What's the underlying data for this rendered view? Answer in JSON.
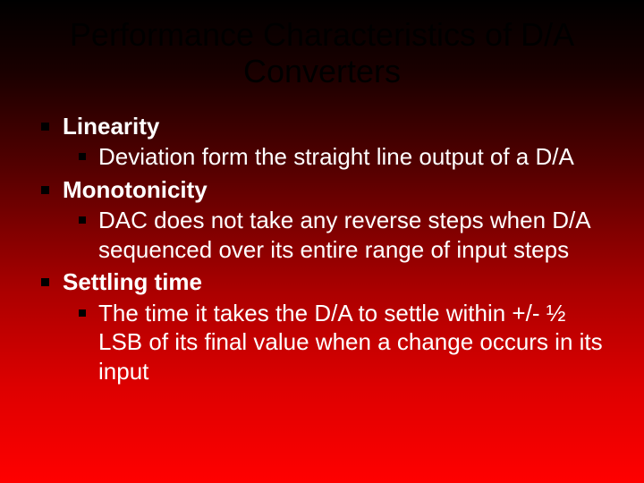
{
  "slide": {
    "title": "Performance Characteristics of D/A Converters",
    "background_gradient": [
      "#000000",
      "#1a0000",
      "#550000",
      "#aa0000",
      "#dd0000",
      "#ff0000"
    ],
    "title_color": "#000000",
    "title_fontsize": 36,
    "body_color": "#ffffff",
    "body_fontsize": 26,
    "bullet_color": "#000000",
    "bullet_shape": "square",
    "items": [
      {
        "heading": "Linearity",
        "sub": "Deviation form the straight line output of a D/A"
      },
      {
        "heading": "Monotonicity",
        "sub": "DAC does not take any reverse steps when D/A sequenced over its entire range of input steps"
      },
      {
        "heading": "Settling time",
        "sub": "The time it takes the D/A to settle within +/- ½ LSB of its final value when a change occurs in its input"
      }
    ]
  }
}
